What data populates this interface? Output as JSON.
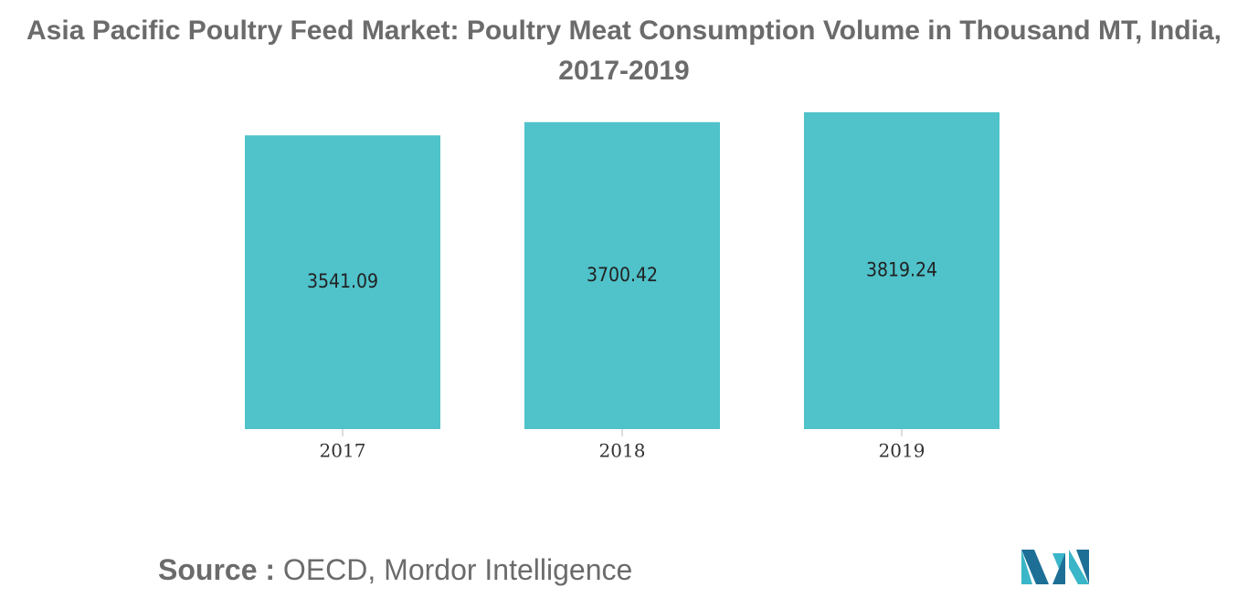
{
  "chart_data": {
    "type": "bar",
    "title": "Asia Pacific Poultry Feed Market: Poultry Meat Consumption Volume in Thousand MT, India, 2017-2019",
    "categories": [
      "2017",
      "2018",
      "2019"
    ],
    "values": [
      3541.09,
      3700.42,
      3819.24
    ],
    "color": "#4fc2ca",
    "source_label": "Source :",
    "source": "OECD, Mordor Intelligence"
  }
}
